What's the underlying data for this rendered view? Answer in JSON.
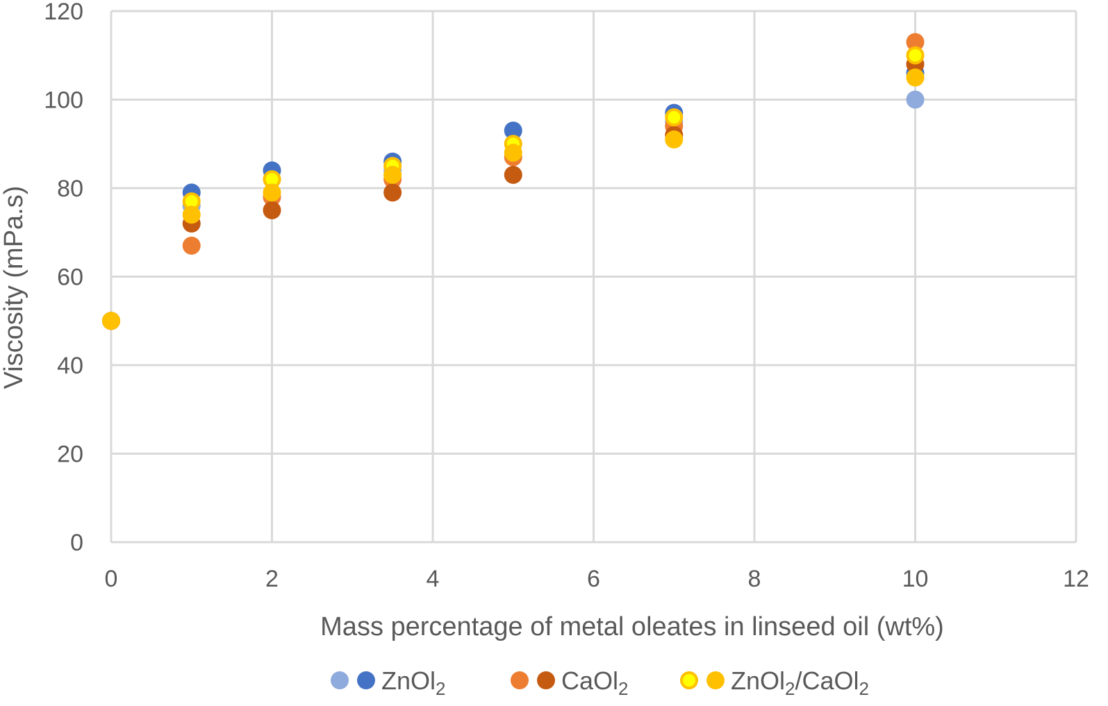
{
  "chart_data": {
    "type": "scatter",
    "xlabel": "Mass percentage of metal oleates in linseed oil (wt%)",
    "ylabel": "Viscosity (mPa.s)",
    "xlim": [
      0,
      12
    ],
    "ylim": [
      0,
      120
    ],
    "xticks": [
      "0",
      "2",
      "4",
      "6",
      "8",
      "10",
      "12"
    ],
    "yticks": [
      "0",
      "20",
      "40",
      "60",
      "80",
      "100",
      "120"
    ],
    "grid": true,
    "legend_position": "bottom",
    "legend": [
      {
        "label": "ZnOl2",
        "main": "ZnOl",
        "sub": "2",
        "markers": [
          "#8faadc",
          "#4472c4"
        ]
      },
      {
        "label": "CaOl2",
        "main": "CaOl",
        "sub": "2",
        "markers": [
          "#ed7d31",
          "#c55a11"
        ]
      },
      {
        "label": "ZnOl2/CaOl2",
        "main1": "ZnOl",
        "sub1": "2",
        "main2": "/CaOl",
        "sub2": "2",
        "markers": [
          "#ffff00",
          "#ffc000"
        ]
      }
    ],
    "series": [
      {
        "color": "#8faadc",
        "points": [
          [
            0,
            50
          ],
          [
            1,
            76
          ],
          [
            2,
            82
          ],
          [
            3.5,
            84
          ],
          [
            5,
            90
          ],
          [
            7,
            95
          ],
          [
            10,
            100
          ]
        ]
      },
      {
        "color": "#4472c4",
        "points": [
          [
            0,
            50
          ],
          [
            1,
            79
          ],
          [
            2,
            84
          ],
          [
            3.5,
            86
          ],
          [
            5,
            93
          ],
          [
            7,
            97
          ],
          [
            10,
            106
          ]
        ]
      },
      {
        "color": "#ed7d31",
        "points": [
          [
            0,
            50
          ],
          [
            1,
            67
          ],
          [
            2,
            78
          ],
          [
            3.5,
            82
          ],
          [
            5,
            87
          ],
          [
            7,
            94
          ],
          [
            10,
            113
          ]
        ]
      },
      {
        "color": "#c55a11",
        "points": [
          [
            0,
            50
          ],
          [
            1,
            72
          ],
          [
            2,
            75
          ],
          [
            3.5,
            79
          ],
          [
            5,
            83
          ],
          [
            7,
            92
          ],
          [
            10,
            108
          ]
        ]
      },
      {
        "color": "#ffff00",
        "stroke": "#ffc000",
        "points": [
          [
            0,
            50
          ],
          [
            1,
            77
          ],
          [
            2,
            82
          ],
          [
            3.5,
            85
          ],
          [
            5,
            90
          ],
          [
            7,
            96
          ],
          [
            10,
            110
          ]
        ]
      },
      {
        "color": "#ffc000",
        "points": [
          [
            0,
            50
          ],
          [
            1,
            74
          ],
          [
            2,
            79
          ],
          [
            3.5,
            83
          ],
          [
            5,
            88
          ],
          [
            7,
            91
          ],
          [
            10,
            105
          ]
        ]
      }
    ]
  }
}
